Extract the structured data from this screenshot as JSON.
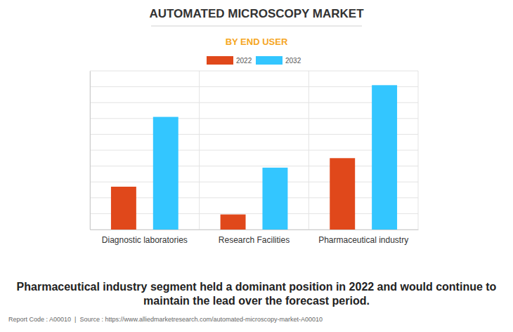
{
  "chart_data": {
    "type": "bar",
    "title": "AUTOMATED MICROSCOPY MARKET",
    "subtitle": "BY END USER",
    "categories": [
      "Diagnostic laboratories",
      "Research Facilities",
      "Pharmaceutical industry"
    ],
    "series": [
      {
        "name": "2022",
        "color": "#e0481b",
        "values": [
          2.7,
          0.95,
          4.5
        ]
      },
      {
        "name": "2032",
        "color": "#33c6ff",
        "values": [
          7.1,
          3.9,
          9.1
        ]
      }
    ],
    "ylim": [
      0,
      10
    ],
    "yticks": [
      0,
      1,
      2,
      3,
      4,
      5,
      6,
      7,
      8,
      9,
      10
    ],
    "grid": true,
    "tick_labels": "x",
    "legend": "top",
    "caption": [
      "Pharmaceutical industry segment held a dominant position in 2022 and would continue to",
      "maintain the lead over the forecast period."
    ],
    "footer": "Report Code : A00010  |  Source : https://www.alliedmarketresearch.com/automated-microscopy-market-A00010"
  }
}
